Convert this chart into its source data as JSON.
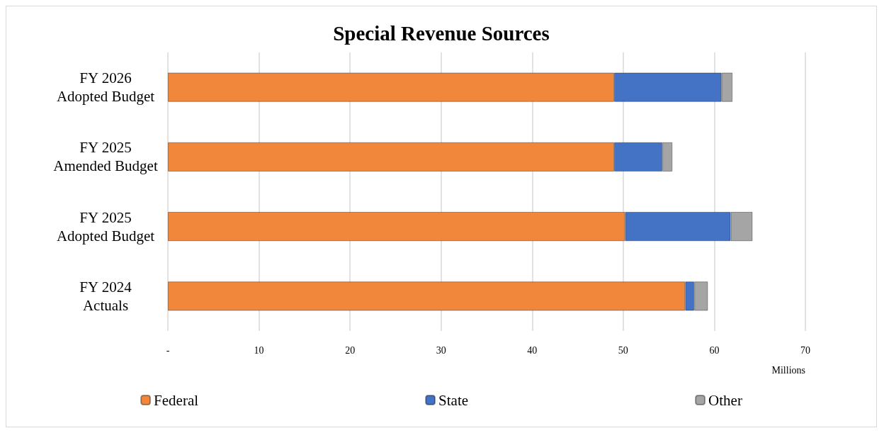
{
  "chart_data": {
    "type": "bar",
    "orientation": "horizontal",
    "stacked": true,
    "title": "Special Revenue Sources",
    "xlabel": "Millions",
    "categories": [
      "FY 2026\nAdopted Budget",
      "FY 2025\nAmended Budget",
      "FY 2025\nAdopted Budget",
      "FY 2024\nActuals"
    ],
    "series": [
      {
        "name": "Federal",
        "color": "#f0873a",
        "values": [
          49.0,
          49.0,
          50.2,
          56.8
        ]
      },
      {
        "name": "State",
        "color": "#4472c4",
        "values": [
          11.8,
          5.3,
          11.6,
          1.0
        ]
      },
      {
        "name": "Other",
        "color": "#a5a5a5",
        "values": [
          1.2,
          1.1,
          2.4,
          1.5
        ]
      }
    ],
    "xlim": [
      0,
      70
    ],
    "xticks": [
      {
        "value": 0,
        "label": "-"
      },
      10,
      20,
      30,
      40,
      50,
      60,
      70
    ],
    "grid": "x",
    "legend": "bottom"
  }
}
